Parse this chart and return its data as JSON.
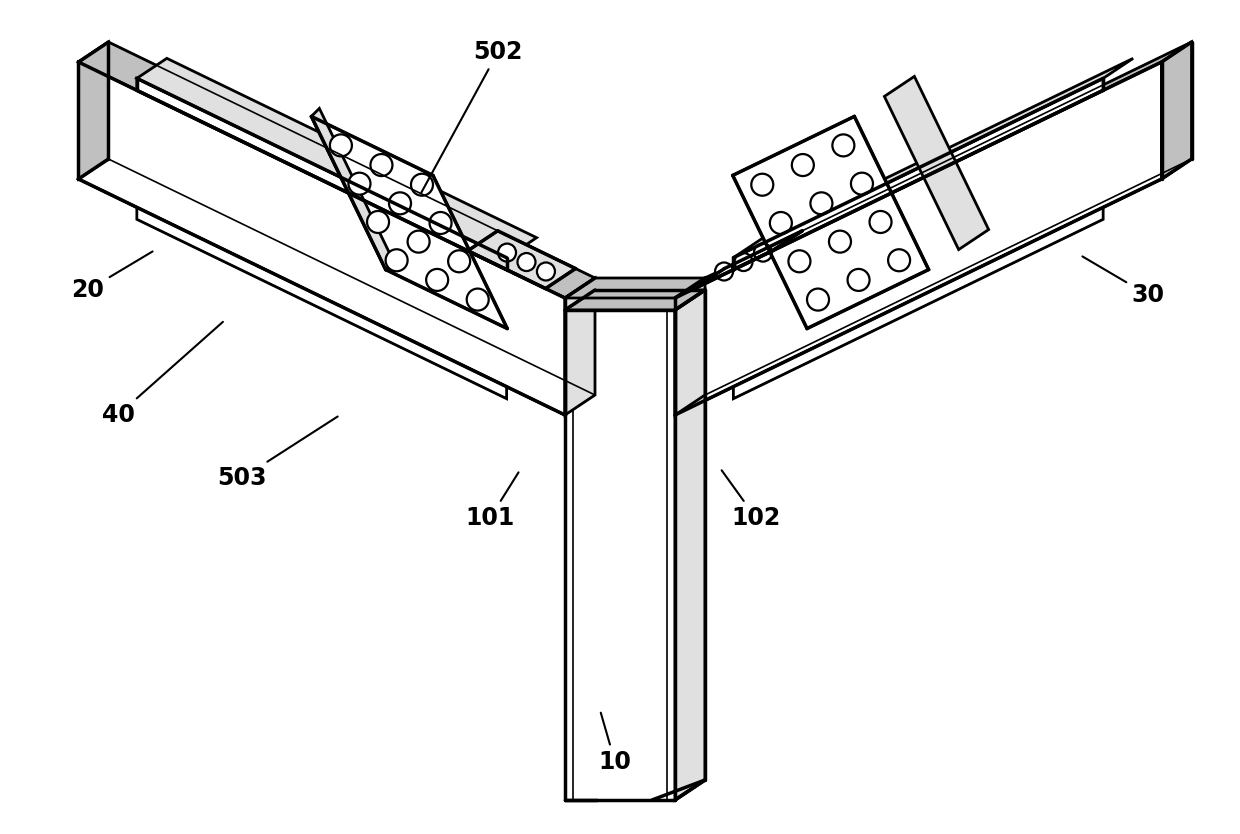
{
  "background_color": "#ffffff",
  "line_color": "#000000",
  "fill_white": "#ffffff",
  "fill_light": "#e0e0e0",
  "fill_medium": "#c0c0c0",
  "fill_dark": "#a0a0a0",
  "fill_top": "#d8d8d8",
  "label_fontsize": 17,
  "label_fontweight": "bold",
  "lw_main": 2.0,
  "lw_thick": 2.5,
  "lw_thin": 1.2
}
